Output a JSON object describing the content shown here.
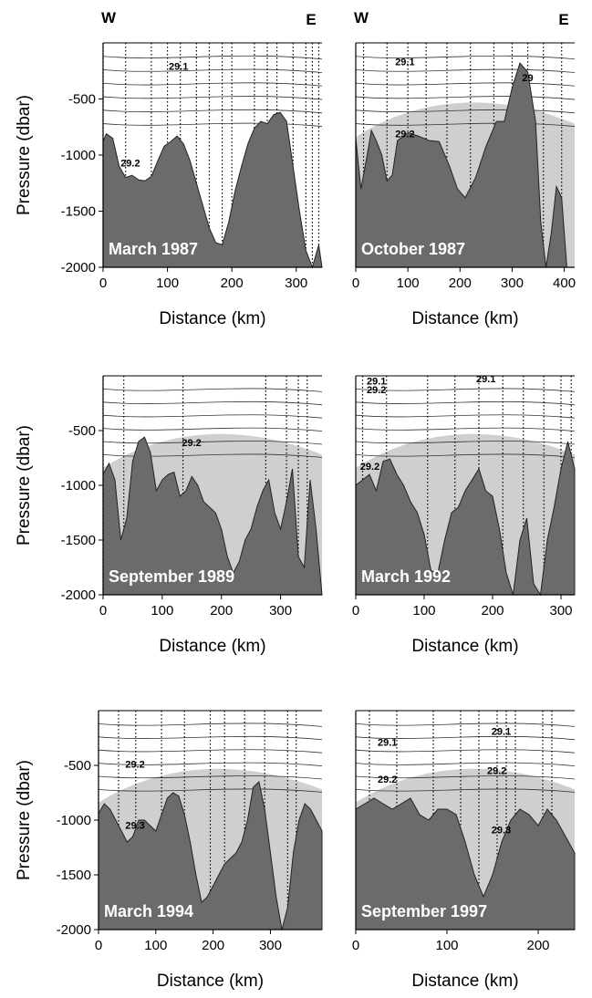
{
  "chart_data": [
    {
      "type": "area",
      "title": "March 1987",
      "xlabel": "Distance (km)",
      "ylabel": "Pressure (dbar)",
      "xlim": [
        0,
        340
      ],
      "ylim": [
        0,
        -2000
      ],
      "x_ticks": [
        "0",
        "100",
        "200",
        "300"
      ],
      "y_ticks": [
        "-500",
        "-1000",
        "-1500",
        "-2000"
      ],
      "west_label": "W",
      "east_label": "E",
      "contour_labels": [
        "29.1",
        "29.2"
      ],
      "station_km": [
        0,
        35,
        75,
        100,
        120,
        145,
        165,
        185,
        200,
        235,
        255,
        270,
        295,
        315,
        325,
        335
      ],
      "bathymetry": {
        "x": [
          0,
          5,
          15,
          25,
          35,
          45,
          55,
          65,
          75,
          85,
          95,
          105,
          115,
          125,
          135,
          145,
          155,
          165,
          175,
          185,
          195,
          205,
          215,
          225,
          235,
          245,
          255,
          265,
          275,
          285,
          295,
          305,
          315,
          325,
          335,
          340
        ],
        "depth": [
          -880,
          -810,
          -850,
          -1100,
          -1200,
          -1180,
          -1220,
          -1230,
          -1190,
          -1050,
          -920,
          -880,
          -830,
          -900,
          -1050,
          -1250,
          -1450,
          -1650,
          -1780,
          -1800,
          -1600,
          -1320,
          -1100,
          -900,
          -760,
          -700,
          -720,
          -640,
          -620,
          -700,
          -1100,
          -1500,
          -1850,
          -2000,
          -1800,
          -2000
        ]
      },
      "light_shading": false
    },
    {
      "type": "area",
      "title": "October 1987",
      "xlabel": "Distance (km)",
      "ylabel": "",
      "xlim": [
        0,
        420
      ],
      "ylim": [
        0,
        -2000
      ],
      "x_ticks": [
        "0",
        "100",
        "200",
        "300",
        "400"
      ],
      "y_ticks": [],
      "west_label": "W",
      "east_label": "E",
      "contour_labels": [
        "29.1",
        "29.2",
        "29"
      ],
      "station_km": [
        15,
        60,
        100,
        135,
        175,
        220,
        265,
        300,
        330,
        360,
        395
      ],
      "bathymetry": {
        "x": [
          0,
          10,
          20,
          30,
          40,
          50,
          60,
          70,
          80,
          100,
          120,
          140,
          160,
          180,
          195,
          210,
          230,
          250,
          270,
          285,
          300,
          315,
          330,
          345,
          355,
          365,
          375,
          385,
          395,
          405,
          420
        ],
        "depth": [
          -850,
          -1300,
          -1050,
          -780,
          -880,
          -1000,
          -1230,
          -1180,
          -870,
          -800,
          -830,
          -870,
          -880,
          -1100,
          -1300,
          -1380,
          -1200,
          -920,
          -700,
          -700,
          -400,
          -180,
          -260,
          -700,
          -1600,
          -2000,
          -1700,
          -1280,
          -1380,
          -2000,
          -2000
        ]
      },
      "light_shading": true
    },
    {
      "type": "area",
      "title": "September 1989",
      "xlabel": "Distance (km)",
      "ylabel": "Pressure (dbar)",
      "xlim": [
        0,
        370
      ],
      "ylim": [
        0,
        -2000
      ],
      "x_ticks": [
        "0",
        "100",
        "200",
        "300"
      ],
      "y_ticks": [
        "-500",
        "-1000",
        "-1500",
        "-2000"
      ],
      "west_label": "",
      "east_label": "",
      "contour_labels": [
        "29.2"
      ],
      "station_km": [
        0,
        35,
        135,
        275,
        310,
        330,
        345
      ],
      "bathymetry": {
        "x": [
          0,
          10,
          20,
          30,
          40,
          50,
          60,
          70,
          80,
          90,
          100,
          110,
          120,
          130,
          140,
          150,
          160,
          170,
          180,
          190,
          200,
          210,
          220,
          230,
          240,
          250,
          260,
          270,
          280,
          290,
          300,
          310,
          320,
          330,
          340,
          350,
          360,
          370
        ],
        "depth": [
          -900,
          -800,
          -950,
          -1500,
          -1300,
          -780,
          -600,
          -560,
          -700,
          -1050,
          -950,
          -900,
          -880,
          -1100,
          -1050,
          -920,
          -1000,
          -1150,
          -1200,
          -1250,
          -1400,
          -1650,
          -1800,
          -1700,
          -1500,
          -1400,
          -1200,
          -1050,
          -950,
          -1250,
          -1400,
          -1150,
          -850,
          -1650,
          -1750,
          -950,
          -1400,
          -2000
        ]
      },
      "light_shading": true
    },
    {
      "type": "area",
      "title": "March 1992",
      "xlabel": "Distance (km)",
      "ylabel": "",
      "xlim": [
        0,
        320
      ],
      "ylim": [
        0,
        -2000
      ],
      "x_ticks": [
        "0",
        "100",
        "200",
        "300"
      ],
      "y_ticks": [],
      "west_label": "",
      "east_label": "",
      "contour_labels": [
        "29.1",
        "29.2",
        "29.1",
        "29.2"
      ],
      "station_km": [
        10,
        45,
        105,
        145,
        180,
        215,
        245,
        275,
        300,
        315
      ],
      "bathymetry": {
        "x": [
          0,
          10,
          20,
          30,
          40,
          50,
          60,
          70,
          80,
          90,
          100,
          110,
          120,
          130,
          140,
          150,
          160,
          170,
          180,
          190,
          200,
          210,
          220,
          230,
          240,
          250,
          260,
          270,
          280,
          290,
          300,
          310,
          320
        ],
        "depth": [
          -1000,
          -950,
          -900,
          -1050,
          -780,
          -760,
          -900,
          -1000,
          -1150,
          -1250,
          -1450,
          -1780,
          -1800,
          -1500,
          -1250,
          -1200,
          -1050,
          -950,
          -850,
          -1050,
          -1100,
          -1400,
          -1800,
          -2000,
          -1500,
          -1300,
          -1900,
          -2000,
          -1500,
          -1200,
          -850,
          -600,
          -850
        ]
      },
      "light_shading": true
    },
    {
      "type": "area",
      "title": "March 1994",
      "xlabel": "Distance (km)",
      "ylabel": "Pressure (dbar)",
      "xlim": [
        0,
        390
      ],
      "ylim": [
        0,
        -2000
      ],
      "x_ticks": [
        "0",
        "100",
        "200",
        "300"
      ],
      "y_ticks": [
        "-500",
        "-1000",
        "-1500",
        "-2000"
      ],
      "west_label": "",
      "east_label": "",
      "contour_labels": [
        "29.2",
        "29.3"
      ],
      "station_km": [
        0,
        35,
        65,
        110,
        150,
        195,
        220,
        255,
        290,
        330,
        345
      ],
      "bathymetry": {
        "x": [
          0,
          10,
          20,
          30,
          40,
          50,
          60,
          70,
          80,
          90,
          100,
          110,
          120,
          130,
          140,
          150,
          160,
          170,
          180,
          190,
          200,
          210,
          220,
          230,
          240,
          250,
          260,
          270,
          280,
          290,
          300,
          310,
          320,
          330,
          340,
          350,
          360,
          370,
          380,
          390
        ],
        "depth": [
          -940,
          -850,
          -900,
          -1000,
          -1100,
          -1200,
          -1150,
          -1000,
          -1000,
          -1050,
          -1100,
          -950,
          -800,
          -750,
          -780,
          -950,
          -1200,
          -1500,
          -1750,
          -1700,
          -1600,
          -1500,
          -1400,
          -1350,
          -1300,
          -1200,
          -1000,
          -700,
          -650,
          -900,
          -1300,
          -1700,
          -2000,
          -1800,
          -1300,
          -1000,
          -850,
          -900,
          -1000,
          -1100
        ]
      },
      "light_shading": true
    },
    {
      "type": "area",
      "title": "September 1997",
      "xlabel": "Distance (km)",
      "ylabel": "",
      "xlim": [
        0,
        240
      ],
      "ylim": [
        0,
        -2000
      ],
      "x_ticks": [
        "0",
        "100",
        "200"
      ],
      "y_ticks": [],
      "west_label": "",
      "east_label": "",
      "contour_labels": [
        "29.1",
        "29.1",
        "29.2",
        "29.2",
        "29.3"
      ],
      "station_km": [
        15,
        45,
        85,
        115,
        135,
        155,
        165,
        175,
        205,
        215
      ],
      "bathymetry": {
        "x": [
          0,
          10,
          20,
          30,
          40,
          50,
          60,
          70,
          80,
          90,
          100,
          110,
          120,
          130,
          140,
          150,
          160,
          170,
          180,
          190,
          200,
          210,
          220,
          230,
          240
        ],
        "depth": [
          -900,
          -850,
          -800,
          -850,
          -900,
          -850,
          -800,
          -950,
          -1000,
          -900,
          -900,
          -950,
          -1200,
          -1500,
          -1700,
          -1500,
          -1200,
          -1000,
          -900,
          -950,
          -1050,
          -900,
          -1000,
          -1150,
          -1300
        ]
      },
      "light_shading": true
    }
  ]
}
